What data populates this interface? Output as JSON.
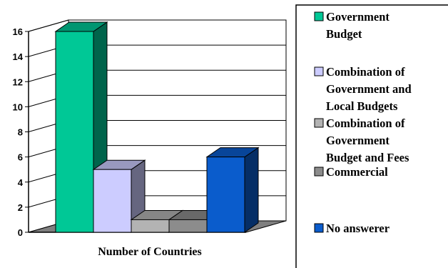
{
  "chart_data": {
    "type": "bar",
    "title": "",
    "xlabel": "Number of Countries",
    "ylabel": "",
    "ylim": [
      0,
      16
    ],
    "yticks": [
      0,
      2,
      4,
      6,
      8,
      10,
      12,
      14,
      16
    ],
    "grid": true,
    "legend_position": "right",
    "series": [
      {
        "name": "Government Budget",
        "legend_lines": [
          "Government",
          "Budget"
        ],
        "value": 16,
        "color": "#00c896"
      },
      {
        "name": "Combination of Government and Local Budgets",
        "legend_lines": [
          "Combination of",
          "Government and",
          "Local Budgets"
        ],
        "value": 5,
        "color": "#ccccff"
      },
      {
        "name": "Combination of Government Budget and Fees",
        "legend_lines": [
          "Combination of",
          "Government",
          "Budget and Fees"
        ],
        "value": 1,
        "color": "#b3b3b3"
      },
      {
        "name": "Commercial",
        "legend_lines": [
          "Commercial"
        ],
        "value": 1,
        "color": "#8c8c8c"
      },
      {
        "name": "No answerer",
        "legend_lines": [
          "No answerer"
        ],
        "value": 6,
        "color": "#0a5ccc"
      }
    ]
  }
}
